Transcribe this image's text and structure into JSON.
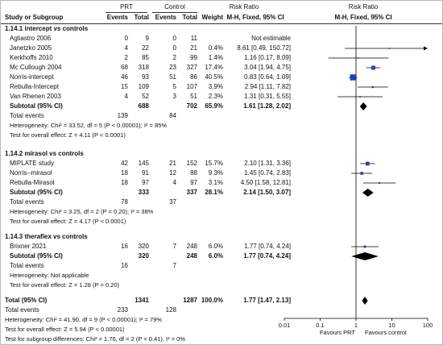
{
  "header": {
    "group1": "PRT",
    "group2": "Control",
    "effect_title": "Risk Ratio",
    "effect_sub": "M-H, Fixed, 95% CI",
    "plot_title": "Risk Ratio",
    "plot_sub": "M-H, Fixed, 95% CI",
    "col_study": "Study or Subgroup",
    "col_events": "Events",
    "col_total": "Total",
    "col_weight": "Weight"
  },
  "subgroups": [
    {
      "title": "1.14.1 intercept vs controls",
      "studies": [
        {
          "name": "Agliastro 2006",
          "e1": "0",
          "n1": "9",
          "e2": "0",
          "n2": "11",
          "weight": "",
          "ci_text": "Not estimable"
        },
        {
          "name": "Janetzko 2005",
          "e1": "4",
          "n1": "22",
          "e2": "0",
          "n2": "21",
          "weight": "0.4%",
          "ci_text": "8.61 [0.49, 150.72]"
        },
        {
          "name": "Kerkhoffs 2010",
          "e1": "2",
          "n1": "85",
          "e2": "2",
          "n2": "99",
          "weight": "1.4%",
          "ci_text": "1.16 [0.17, 8.09]"
        },
        {
          "name": "Mc Cullough 2004",
          "e1": "68",
          "n1": "318",
          "e2": "23",
          "n2": "327",
          "weight": "17.4%",
          "ci_text": "3.04 [1.94, 4.75]"
        },
        {
          "name": "Norris-intercept",
          "e1": "46",
          "n1": "93",
          "e2": "51",
          "n2": "86",
          "weight": "40.5%",
          "ci_text": "0.83 [0.64, 1.09]"
        },
        {
          "name": "Rebulla-Intercept",
          "e1": "15",
          "n1": "109",
          "e2": "5",
          "n2": "107",
          "weight": "3.9%",
          "ci_text": "2.94 [1.11, 7.82]"
        },
        {
          "name": "Van Rhenen 2003",
          "e1": "4",
          "n1": "52",
          "e2": "3",
          "n2": "51",
          "weight": "2.3%",
          "ci_text": "1.31 [0.31, 5.55]"
        }
      ],
      "subtotal": {
        "label": "Subtotal (95% CI)",
        "n1": "688",
        "n2": "702",
        "weight": "65.9%",
        "ci_text": "1.61 [1.28, 2.02]"
      },
      "total_events": {
        "label": "Total events",
        "e1": "139",
        "e2": "84"
      },
      "heterogeneity": "Heterogeneity: Chi² = 33.52, df = 5 (P < 0.00001); I² = 85%",
      "overall": "Test for overall effect: Z = 4.11 (P < 0.0001)"
    },
    {
      "title": "1.14.2 mirasol vs controls",
      "studies": [
        {
          "name": "MIPLATE study",
          "e1": "42",
          "n1": "145",
          "e2": "21",
          "n2": "152",
          "weight": "15.7%",
          "ci_text": "2.10 [1.31, 3.36]"
        },
        {
          "name": "Norris--mirasol",
          "e1": "18",
          "n1": "91",
          "e2": "12",
          "n2": "88",
          "weight": "9.3%",
          "ci_text": "1.45 [0.74, 2.83]"
        },
        {
          "name": "Rebulla-Mirasol",
          "e1": "18",
          "n1": "97",
          "e2": "4",
          "n2": "97",
          "weight": "3.1%",
          "ci_text": "4.50 [1.58, 12.81]"
        }
      ],
      "subtotal": {
        "label": "Subtotal (95% CI)",
        "n1": "333",
        "n2": "337",
        "weight": "28.1%",
        "ci_text": "2.14 [1.50, 3.07]"
      },
      "total_events": {
        "label": "Total events",
        "e1": "78",
        "e2": "37"
      },
      "heterogeneity": "Heterogeneity: Chi² = 3.25, df = 2 (P = 0.20); I² = 38%",
      "overall": "Test for overall effect: Z = 4.17 (P < 0.0001)"
    },
    {
      "title": "1.14.3 theraflex vs controls",
      "studies": [
        {
          "name": "Brixner 2021",
          "e1": "16",
          "n1": "320",
          "e2": "7",
          "n2": "248",
          "weight": "6.0%",
          "ci_text": "1.77 [0.74, 4.24]"
        }
      ],
      "subtotal": {
        "label": "Subtotal (95% CI)",
        "n1": "320",
        "n2": "248",
        "weight": "6.0%",
        "ci_text": "1.77 [0.74, 4.24]"
      },
      "total_events": {
        "label": "Total events",
        "e1": "16",
        "e2": "7"
      },
      "heterogeneity": "Heterogeneity: Not applicable",
      "overall": "Test for overall effect: Z = 1.28 (P = 0.20)"
    }
  ],
  "total": {
    "label": "Total (95% CI)",
    "n1": "1341",
    "n2": "1287",
    "weight": "100.0%",
    "ci_text": "1.77 [1.47, 2.13]"
  },
  "total_events": {
    "label": "Total events",
    "e1": "233",
    "e2": "128"
  },
  "heterogeneity": "Heterogeneity: Chi² = 41.90, df = 9 (P < 0.00001); I² = 79%",
  "overall": "Test for overall effect: Z = 5.94 (P < 0.00001)",
  "subgroup_diff": "Test for subgroup differences: Chi² = 1.76, df = 2 (P = 0.41), I² = 0%",
  "axis": {
    "ticks": [
      "0.01",
      "0.1",
      "1",
      "10",
      "100"
    ],
    "favours_left": "Favours PRT",
    "favours_right": "Favours control"
  },
  "chart_data": {
    "type": "forest",
    "scale": "log",
    "xlim": [
      0.01,
      100
    ],
    "ticks": [
      0.01,
      0.1,
      1,
      10,
      100
    ],
    "studies": [
      {
        "name": "Agliastro 2006",
        "estimable": false
      },
      {
        "name": "Janetzko 2005",
        "rr": 8.61,
        "lo": 0.49,
        "hi": 150.72,
        "weight": 0.4
      },
      {
        "name": "Kerkhoffs 2010",
        "rr": 1.16,
        "lo": 0.17,
        "hi": 8.09,
        "weight": 1.4
      },
      {
        "name": "Mc Cullough 2004",
        "rr": 3.04,
        "lo": 1.94,
        "hi": 4.75,
        "weight": 17.4
      },
      {
        "name": "Norris-intercept",
        "rr": 0.83,
        "lo": 0.64,
        "hi": 1.09,
        "weight": 40.5
      },
      {
        "name": "Rebulla-Intercept",
        "rr": 2.94,
        "lo": 1.11,
        "hi": 7.82,
        "weight": 3.9
      },
      {
        "name": "Van Rhenen 2003",
        "rr": 1.31,
        "lo": 0.31,
        "hi": 5.55,
        "weight": 2.3
      },
      {
        "name": "MIPLATE study",
        "rr": 2.1,
        "lo": 1.31,
        "hi": 3.36,
        "weight": 15.7
      },
      {
        "name": "Norris--mirasol",
        "rr": 1.45,
        "lo": 0.74,
        "hi": 2.83,
        "weight": 9.3
      },
      {
        "name": "Rebulla-Mirasol",
        "rr": 4.5,
        "lo": 1.58,
        "hi": 12.81,
        "weight": 3.1
      },
      {
        "name": "Brixner 2021",
        "rr": 1.77,
        "lo": 0.74,
        "hi": 4.24,
        "weight": 6.0
      }
    ],
    "subtotals": [
      {
        "name": "1.14.1 intercept vs controls",
        "rr": 1.61,
        "lo": 1.28,
        "hi": 2.02
      },
      {
        "name": "1.14.2 mirasol vs controls",
        "rr": 2.14,
        "lo": 1.5,
        "hi": 3.07
      },
      {
        "name": "1.14.3 theraflex vs controls",
        "rr": 1.77,
        "lo": 0.74,
        "hi": 4.24
      }
    ],
    "total": {
      "rr": 1.77,
      "lo": 1.47,
      "hi": 2.13
    },
    "colors": {
      "marker": "#1f3fbf",
      "diamond": "#000000",
      "line": "#000000"
    }
  }
}
